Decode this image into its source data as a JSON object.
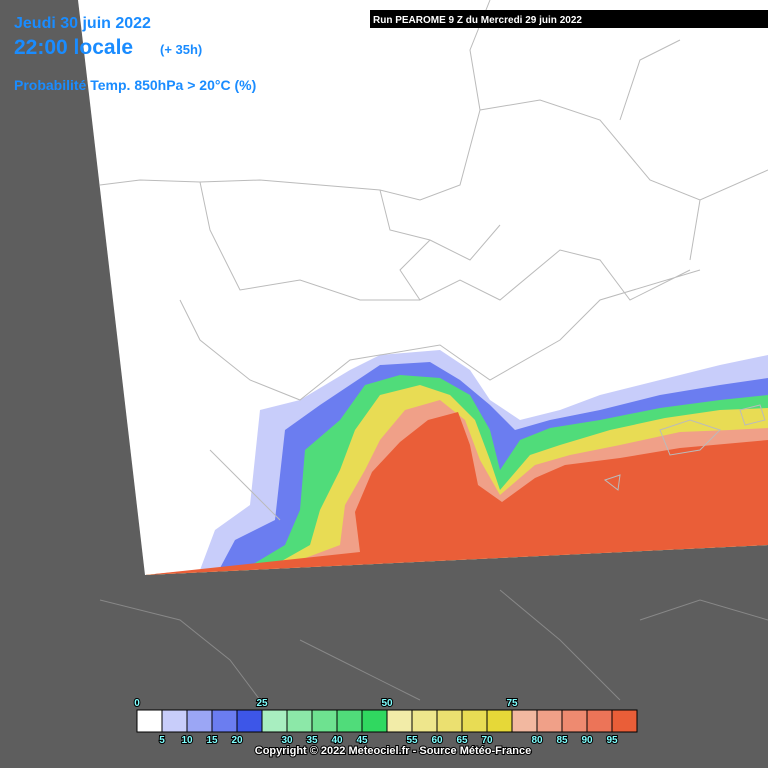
{
  "header": {
    "date": "Jeudi 30 juin 2022",
    "time": "22:00 locale",
    "lead": "(+ 35h)",
    "parameter": "Probabilité Temp. 850hPa > 20°C (%)",
    "run": "Run PEAROME 9 Z du Mercredi 29 juin 2022"
  },
  "legend": {
    "range": [
      0,
      100
    ],
    "colors": [
      "#ffffff",
      "#c8cdfa",
      "#9ba6f5",
      "#6b7df0",
      "#3d56e8",
      "#a8eec0",
      "#8ce8a8",
      "#6ee290",
      "#50dc7a",
      "#30d860",
      "#f2eca8",
      "#eee68c",
      "#ebe070",
      "#e8dc54",
      "#e6d838",
      "#f2b8a0",
      "#f0a088",
      "#ee8a70",
      "#ec7458",
      "#ea5e38"
    ],
    "ticks_top": [
      0,
      25,
      50,
      75
    ],
    "ticks_bottom": [
      5,
      10,
      15,
      20,
      30,
      35,
      40,
      45,
      55,
      60,
      65,
      70,
      80,
      85,
      90,
      95
    ]
  },
  "footer": {
    "copyright": "Copyright © 2022 Meteociel.fr - Source Météo-France"
  }
}
